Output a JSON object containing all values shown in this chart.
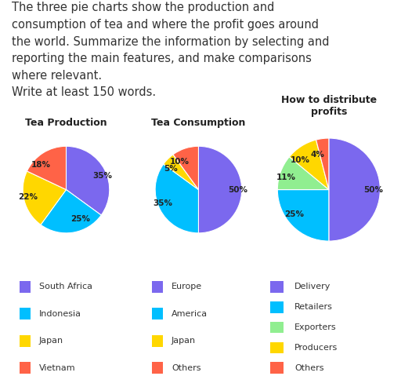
{
  "title_text": "The three pie charts show the production and\nconsumption of tea and where the profit goes around\nthe world. Summarize the information by selecting and\nreporting the main features, and make comparisons\nwhere relevant.\nWrite at least 150 words.",
  "title_fontsize": 10.5,
  "charts": [
    {
      "title": "Tea Production",
      "values": [
        35,
        25,
        22,
        18
      ],
      "colors": [
        "#7B68EE",
        "#00BFFF",
        "#FFD700",
        "#FF6347"
      ],
      "pct_labels": [
        "35%",
        "25%",
        "22%",
        "18%"
      ],
      "legend_labels": [
        "South Africa",
        "Indonesia",
        "Japan",
        "Vietnam"
      ],
      "startangle": 90,
      "counterclock": false
    },
    {
      "title": "Tea Consumption",
      "values": [
        50,
        35,
        5,
        10
      ],
      "colors": [
        "#7B68EE",
        "#00BFFF",
        "#FFD700",
        "#FF6347"
      ],
      "pct_labels": [
        "50%",
        "35%",
        "5%",
        "10%"
      ],
      "legend_labels": [
        "Europe",
        "America",
        "Japan",
        "Others"
      ],
      "startangle": 90,
      "counterclock": false
    },
    {
      "title": "How to distribute\nprofits",
      "values": [
        50,
        25,
        11,
        10,
        4
      ],
      "colors": [
        "#7B68EE",
        "#00BFFF",
        "#90EE90",
        "#FFD700",
        "#FF6347"
      ],
      "pct_labels": [
        "50%",
        "25%",
        "11%",
        "10%",
        "4%"
      ],
      "legend_labels": [
        "Delivery",
        "Retailers",
        "Exporters",
        "Producers",
        "Others"
      ],
      "startangle": 90,
      "counterclock": false
    }
  ],
  "bg_color": "#ffffff",
  "text_color": "#333333",
  "label_fontsize": 7.5,
  "title_chart_fontsize": 9,
  "legend_fontsize": 8.0,
  "legend_box_color": "#eeeeee",
  "legend_border_color": "#cccccc"
}
